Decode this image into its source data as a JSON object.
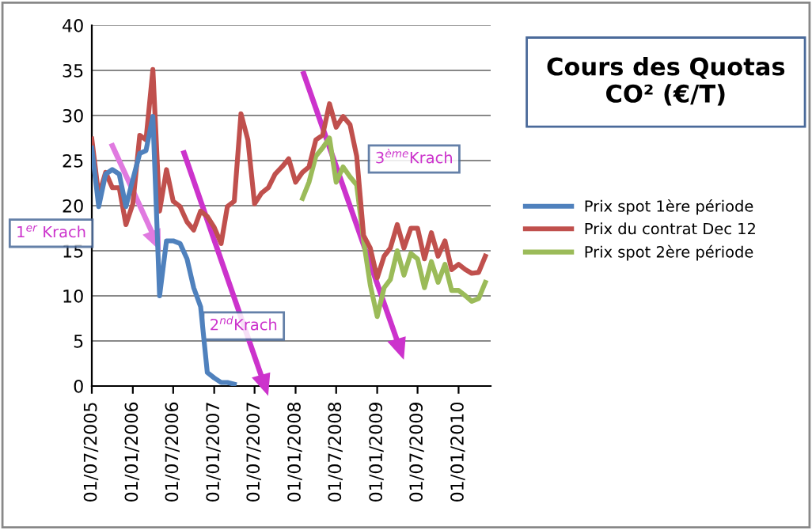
{
  "chart_data": {
    "type": "line",
    "title": "Cours des Quotas CO² (€/T)",
    "series": [
      {
        "name": "Prix spot 1ère période",
        "color": "#4f81bd",
        "x": [
          "2005-07",
          "2005-08",
          "2005-09",
          "2005-10",
          "2005-11",
          "2005-12",
          "2006-01",
          "2006-02",
          "2006-03",
          "2006-04",
          "2006-05",
          "2006-06",
          "2006-07",
          "2006-08",
          "2006-09",
          "2006-10",
          "2006-11",
          "2006-12",
          "2007-01",
          "2007-02",
          "2007-03",
          "2007-04"
        ],
        "values": [
          26.4,
          19.9,
          23.5,
          24,
          23.5,
          19.9,
          22.9,
          25.8,
          26.1,
          29.9,
          10,
          16.1,
          16.1,
          15.8,
          14.1,
          10.9,
          8.8,
          1.5,
          0.9,
          0.4,
          0.4,
          0.2
        ]
      },
      {
        "name": "Prix du contrat Dec 12",
        "color": "#c0504d",
        "x": [
          "2005-07",
          "2005-08",
          "2005-09",
          "2005-10",
          "2005-11",
          "2005-12",
          "2006-01",
          "2006-02",
          "2006-03",
          "2006-04",
          "2006-05",
          "2006-06",
          "2006-07",
          "2006-08",
          "2006-09",
          "2006-10",
          "2006-11",
          "2006-12",
          "2007-01",
          "2007-02",
          "2007-03",
          "2007-04",
          "2007-05",
          "2007-06",
          "2007-07",
          "2007-08",
          "2007-09",
          "2007-10",
          "2007-11",
          "2007-12",
          "2008-01",
          "2008-02",
          "2008-03",
          "2008-04",
          "2008-05",
          "2008-06",
          "2008-07",
          "2008-08",
          "2008-09",
          "2008-10",
          "2008-11",
          "2008-12",
          "2009-01",
          "2009-02",
          "2009-03",
          "2009-04",
          "2009-05",
          "2009-06",
          "2009-07",
          "2009-08",
          "2009-09",
          "2009-10",
          "2009-11",
          "2009-12",
          "2010-01",
          "2010-02",
          "2010-03",
          "2010-04",
          "2010-05"
        ],
        "values": [
          27.4,
          21.1,
          23.7,
          22,
          22,
          17.9,
          20.2,
          27.8,
          27.3,
          35.1,
          19.4,
          24,
          20.5,
          19.9,
          18.2,
          17.3,
          19.4,
          18.8,
          17.6,
          15.8,
          19.9,
          20.5,
          30.2,
          27.3,
          20.2,
          21.4,
          22,
          23.5,
          24.3,
          25.2,
          22.6,
          23.7,
          24.3,
          27.3,
          27.8,
          31.3,
          28.7,
          29.9,
          29,
          25.5,
          16.7,
          15.3,
          12,
          14.4,
          15.3,
          17.9,
          15.3,
          17.5,
          17.5,
          14.1,
          17,
          14.4,
          16.1,
          12.9,
          13.5,
          12.9,
          12.5,
          12.6,
          14.4
        ]
      },
      {
        "name": "Prix spot 2ère période",
        "color": "#9bbb59",
        "x": [
          "2008-02",
          "2008-03",
          "2008-04",
          "2008-05",
          "2008-06",
          "2008-07",
          "2008-08",
          "2008-09",
          "2008-10",
          "2008-11",
          "2008-12",
          "2009-01",
          "2009-02",
          "2009-03",
          "2009-04",
          "2009-05",
          "2009-06",
          "2009-07",
          "2009-08",
          "2009-09",
          "2009-10",
          "2009-11",
          "2009-12",
          "2010-01",
          "2010-02",
          "2010-03",
          "2010-04",
          "2010-05"
        ],
        "values": [
          20.8,
          22.6,
          25.5,
          26.4,
          27.5,
          22.6,
          24.3,
          23.2,
          22.3,
          16.1,
          11.2,
          7.7,
          10.9,
          11.8,
          15,
          12.3,
          14.7,
          14.1,
          10.9,
          13.8,
          11.5,
          13.5,
          10.6,
          10.6,
          10,
          9.4,
          9.7,
          11.5
        ]
      }
    ],
    "xlim": [
      "2005-07-01",
      "2010-05-25"
    ],
    "xticks": [
      {
        "value": "2005-07-01",
        "label": "01/07/2005"
      },
      {
        "value": "2006-01-01",
        "label": "01/01/2006"
      },
      {
        "value": "2006-07-01",
        "label": "01/07/2006"
      },
      {
        "value": "2007-01-01",
        "label": "01/01/2007"
      },
      {
        "value": "2007-07-01",
        "label": "01/07/2007"
      },
      {
        "value": "2008-01-01",
        "label": "01/01/2008"
      },
      {
        "value": "2008-07-01",
        "label": "01/07/2008"
      },
      {
        "value": "2009-01-01",
        "label": "01/01/2009"
      },
      {
        "value": "2009-07-01",
        "label": "01/07/2009"
      },
      {
        "value": "2010-01-01",
        "label": "01/01/2010"
      }
    ],
    "ylim": [
      0,
      40
    ],
    "yticks": [
      0,
      5,
      10,
      15,
      20,
      25,
      30,
      35,
      40
    ],
    "grid": "y",
    "legend": "right",
    "marker": "none",
    "line_style": "solid",
    "annotations": [
      "1$^{er}$ Krach",
      "2$^{nd}$Krach",
      "3$^{ème}$Krach"
    ]
  }
}
